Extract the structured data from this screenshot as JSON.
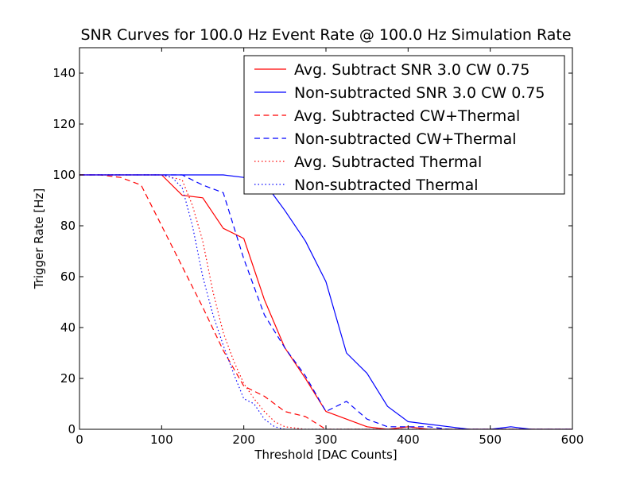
{
  "chart_data": {
    "type": "line",
    "title": "SNR Curves for 100.0 Hz Event Rate @ 100.0 Hz Simulation Rate",
    "xlabel": "Threshold [DAC Counts]",
    "ylabel": "Trigger Rate [Hz]",
    "xlim": [
      0,
      600
    ],
    "ylim": [
      0,
      150
    ],
    "xticks": [
      0,
      100,
      200,
      300,
      400,
      500,
      600
    ],
    "yticks": [
      0,
      20,
      40,
      60,
      80,
      100,
      120,
      140
    ],
    "grid": false,
    "legend_position": "top-right",
    "series": [
      {
        "name": "Avg. Subtract SNR 3.0 CW 0.75",
        "color": "#ff0000",
        "style": "solid",
        "x": [
          0,
          25,
          50,
          75,
          100,
          125,
          150,
          175,
          200,
          225,
          250,
          275,
          300,
          325,
          350,
          375,
          400,
          425,
          450,
          475,
          500,
          525,
          550,
          575,
          600
        ],
        "y": [
          100,
          100,
          100,
          100,
          100,
          92,
          91,
          79,
          75,
          51,
          32,
          20,
          7,
          4,
          1,
          0,
          1,
          0,
          0,
          0,
          0,
          0,
          0,
          0,
          0
        ]
      },
      {
        "name": "Non-subtracted SNR 3.0 CW 0.75",
        "color": "#0000ff",
        "style": "solid",
        "x": [
          0,
          25,
          50,
          75,
          100,
          125,
          150,
          175,
          200,
          225,
          250,
          275,
          300,
          325,
          350,
          375,
          400,
          425,
          450,
          475,
          500,
          525,
          550,
          575,
          600
        ],
        "y": [
          100,
          100,
          100,
          100,
          100,
          100,
          100,
          100,
          99,
          97,
          86,
          74,
          58,
          30,
          22,
          9,
          3,
          2,
          1,
          0,
          0,
          1,
          0,
          0,
          0
        ]
      },
      {
        "name": "Avg. Subtracted CW+Thermal",
        "color": "#ff0000",
        "style": "dashed",
        "x": [
          0,
          25,
          50,
          75,
          100,
          125,
          150,
          175,
          200,
          225,
          250,
          275,
          300,
          325,
          350,
          375,
          400,
          425,
          450,
          475,
          500,
          525,
          550,
          575,
          600
        ],
        "y": [
          100,
          100,
          99,
          96,
          80,
          64,
          48,
          31,
          17,
          13,
          7,
          5,
          0,
          0,
          0,
          0,
          0,
          0,
          0,
          0,
          0,
          0,
          0,
          0,
          0
        ]
      },
      {
        "name": "Non-subtracted CW+Thermal",
        "color": "#0000ff",
        "style": "dashed",
        "x": [
          0,
          25,
          50,
          75,
          100,
          125,
          150,
          175,
          200,
          225,
          250,
          275,
          300,
          325,
          350,
          375,
          400,
          425,
          450,
          475,
          500,
          525,
          550,
          575,
          600
        ],
        "y": [
          100,
          100,
          100,
          100,
          100,
          100,
          96,
          93,
          67,
          45,
          32,
          21,
          7,
          11,
          4,
          1,
          1,
          1,
          0,
          0,
          0,
          0,
          0,
          0,
          0
        ]
      },
      {
        "name": "Avg. Subtracted Thermal",
        "color": "#ff0000",
        "style": "dotted",
        "x": [
          0,
          25,
          50,
          75,
          100,
          125,
          137.5,
          150,
          162.5,
          175,
          187.5,
          200,
          212.5,
          225,
          237.5,
          250,
          275,
          300,
          325,
          350,
          375,
          400,
          425,
          450,
          475,
          500,
          525,
          550,
          575,
          600
        ],
        "y": [
          100,
          100,
          100,
          100,
          100,
          98,
          88,
          74,
          54,
          38,
          27,
          18,
          12,
          7,
          3,
          1,
          0,
          0,
          0,
          0,
          0,
          0,
          0,
          0,
          0,
          0,
          0,
          0,
          0,
          0
        ]
      },
      {
        "name": "Non-subtracted Thermal",
        "color": "#0000ff",
        "style": "dotted",
        "x": [
          0,
          25,
          50,
          75,
          100,
          112.5,
          125,
          137.5,
          150,
          162.5,
          175,
          187.5,
          200,
          212.5,
          225,
          237.5,
          250,
          275,
          300,
          325,
          350,
          375,
          400,
          425,
          450,
          475,
          500,
          525,
          550,
          575,
          600
        ],
        "y": [
          100,
          100,
          100,
          100,
          100,
          99,
          95,
          80,
          60,
          45,
          33,
          22,
          12,
          10,
          4,
          1,
          0,
          0,
          0,
          0,
          0,
          0,
          0,
          0,
          0,
          0,
          0,
          0,
          0,
          0,
          0
        ]
      }
    ]
  }
}
